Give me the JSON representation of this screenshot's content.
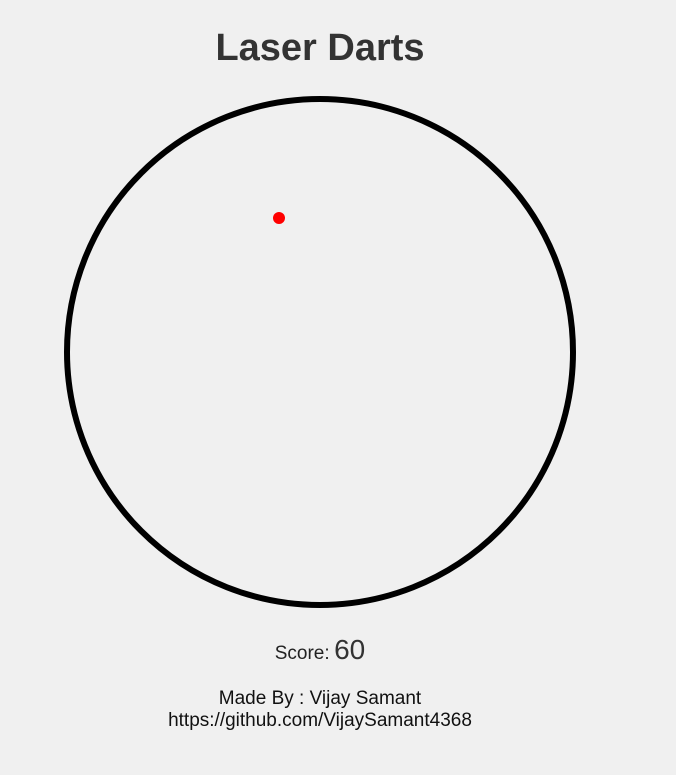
{
  "game": {
    "title": "Laser Darts",
    "score_label": "Score:",
    "score_value": "60"
  },
  "credits": {
    "made_by": "Made By : Vijay Samant",
    "link": "https://github.com/VijaySamant4368"
  },
  "colors": {
    "background": "#f0f0f0",
    "board_stroke": "#000000",
    "laser_dot": "#ff0000",
    "title": "#333333"
  }
}
